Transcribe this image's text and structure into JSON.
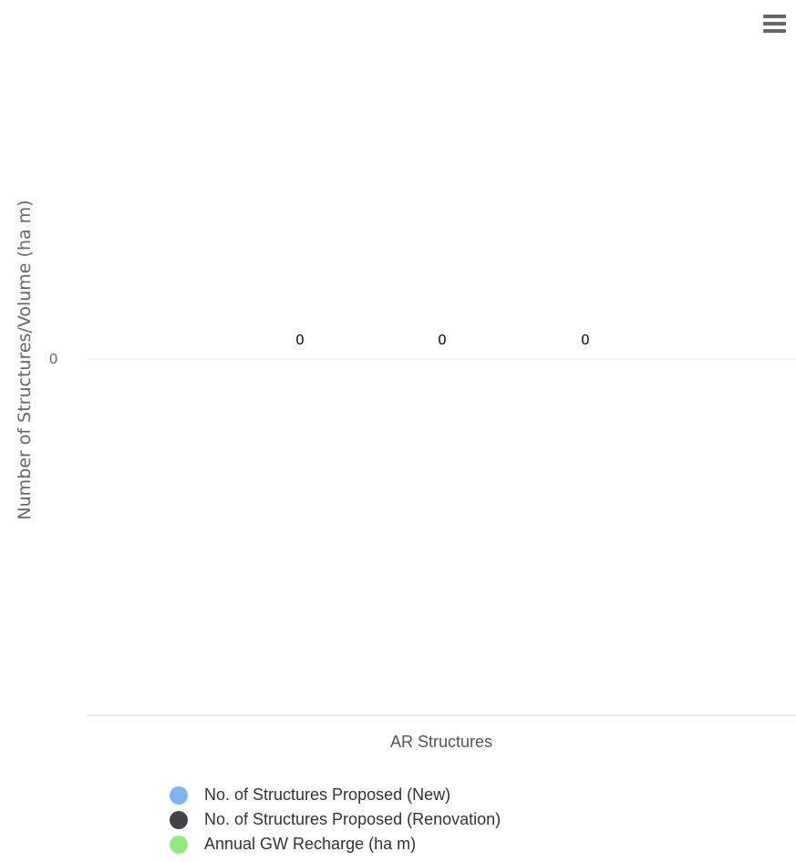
{
  "menu": {
    "icon": "hamburger-menu-icon"
  },
  "chart_data": {
    "type": "bar",
    "title": "",
    "xlabel": "AR Structures",
    "ylabel": "Number of Structures/Volume (ha m)",
    "y_ticks": [
      "0"
    ],
    "grid": true,
    "legend_position": "bottom",
    "series": [
      {
        "name": "No. of Structures Proposed (New)",
        "color": "#7cb5ec",
        "values": [
          0
        ],
        "data_label": "0"
      },
      {
        "name": "No. of Structures Proposed (Renovation)",
        "color": "#434348",
        "values": [
          0
        ],
        "data_label": "0"
      },
      {
        "name": "Annual GW Recharge (ha m)",
        "color": "#90ed7d",
        "values": [
          0
        ],
        "data_label": "0"
      }
    ]
  }
}
